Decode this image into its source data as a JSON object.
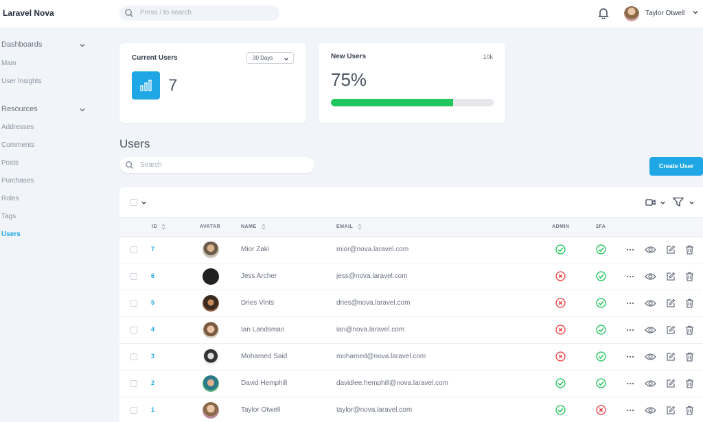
{
  "app": {
    "brand": "Laravel Nova"
  },
  "header": {
    "search_placeholder": "Press / to search",
    "user_name": "Taylor Otwell"
  },
  "sidebar": {
    "sections": [
      {
        "label": "Dashboards",
        "items": [
          "Main",
          "User Insights"
        ]
      },
      {
        "label": "Resources",
        "items": [
          "Addresses",
          "Comments",
          "Posts",
          "Purchases",
          "Roles",
          "Tags",
          "Users"
        ]
      }
    ],
    "active_item": "Users"
  },
  "metrics": {
    "current_users": {
      "title": "Current Users",
      "range": "30 Days",
      "value": "7"
    },
    "new_users": {
      "title": "New Users",
      "goal": "10k",
      "percent_label": "75%",
      "progress": 0.75
    }
  },
  "resource": {
    "title": "Users",
    "search_placeholder": "Search",
    "create_label": "Create User",
    "columns": [
      "ID",
      "AVATAR",
      "NAME",
      "EMAIL",
      "ADMIN",
      "2FA"
    ],
    "rows": [
      {
        "id": "7",
        "name": "Mior Zaki",
        "email": "mior@nova.laravel.com",
        "admin": true,
        "twofa": true,
        "avatar": "avatar-mior"
      },
      {
        "id": "6",
        "name": "Jess Archer",
        "email": "jess@nova.laravel.com",
        "admin": false,
        "twofa": true,
        "avatar": "avatar-jess"
      },
      {
        "id": "5",
        "name": "Dries Vints",
        "email": "dries@nova.laravel.com",
        "admin": false,
        "twofa": true,
        "avatar": "avatar-dries"
      },
      {
        "id": "4",
        "name": "Ian Landsman",
        "email": "ian@nova.laravel.com",
        "admin": false,
        "twofa": true,
        "avatar": "avatar-ian"
      },
      {
        "id": "3",
        "name": "Mohamed Said",
        "email": "mohamed@nova.laravel.com",
        "admin": false,
        "twofa": true,
        "avatar": "avatar-mohamed"
      },
      {
        "id": "2",
        "name": "David Hemphill",
        "email": "davidlee.hemphill@nova.laravel.com",
        "admin": true,
        "twofa": true,
        "avatar": "avatar-david"
      },
      {
        "id": "1",
        "name": "Taylor Otwell",
        "email": "taylor@nova.laravel.com",
        "admin": true,
        "twofa": false,
        "avatar": "avatar-taylor"
      }
    ]
  },
  "colors": {
    "accent": "#1ea7e4",
    "success": "#21c55d",
    "danger": "#ef4444",
    "progress": "#21c55d"
  }
}
